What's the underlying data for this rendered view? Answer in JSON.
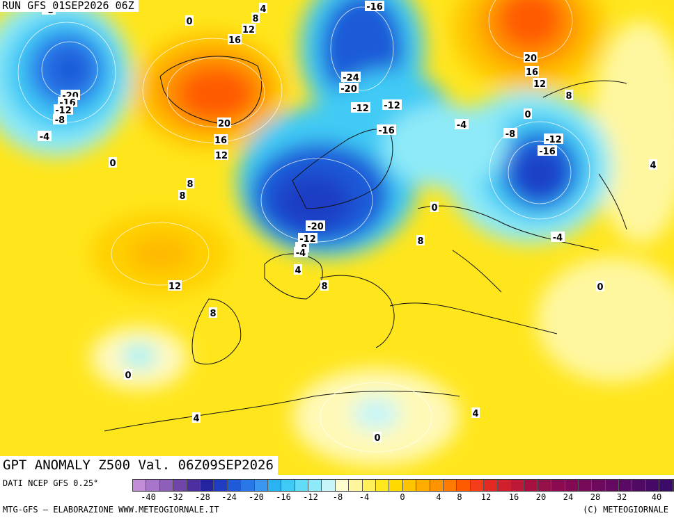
{
  "header": {
    "run_label": "RUN GFS 01SEP2026 06Z"
  },
  "map": {
    "title": "GPT ANOMALY Z500 Val. 06Z09SEP2026",
    "variable": "Z500 geopotential anomaly",
    "contour_labels": [
      "-8",
      "4",
      "0",
      "8",
      "12",
      "16",
      "-16",
      "-20",
      "-16",
      "-12",
      "-8",
      "-4",
      "0",
      "20",
      "16",
      "12",
      "8",
      "8",
      "-24",
      "-20",
      "-12",
      "-12",
      "-16",
      "20",
      "16",
      "12",
      "8",
      "0",
      "-4",
      "-8",
      "-12",
      "-16",
      "0",
      "-20",
      "-12",
      "-8",
      "-4",
      "4",
      "8",
      "8",
      "12",
      "8",
      "-4",
      "0",
      "0",
      "4",
      "4",
      "0",
      "4"
    ]
  },
  "footer": {
    "data_source": "DATI NCEP GFS 0.25°",
    "credit_left": "MTG-GFS — ELABORAZIONE WWW.METEOGIORNALE.IT",
    "credit_right": "(C) METEOGIORNALE"
  },
  "legend": {
    "ticks": [
      "-40",
      "-32",
      "-28",
      "-24",
      "-20",
      "-16",
      "-12",
      "-8",
      "-4",
      "0",
      "4",
      "8",
      "12",
      "16",
      "20",
      "24",
      "28",
      "32",
      "40"
    ],
    "colors": [
      "#c28fd6",
      "#a775c9",
      "#8d5fb9",
      "#7044a8",
      "#4d2fa0",
      "#2424a0",
      "#1f3cc4",
      "#1f5ad8",
      "#2a78e8",
      "#3a96f0",
      "#29b3f3",
      "#3fcaf5",
      "#62dcf6",
      "#8eeaf8",
      "#c8f6f8",
      "#fffcd0",
      "#fff59c",
      "#fff05a",
      "#ffe820",
      "#ffd900",
      "#ffc400",
      "#ffad00",
      "#ff9400",
      "#ff7a00",
      "#ff5a00",
      "#f53d1a",
      "#e22822",
      "#d0202e",
      "#bd1838",
      "#a81040",
      "#96104a",
      "#8c0a50",
      "#820a55",
      "#780a5a",
      "#6e0a5e",
      "#640a60",
      "#5a0a62",
      "#500a64",
      "#460a66",
      "#3c0a68"
    ]
  }
}
